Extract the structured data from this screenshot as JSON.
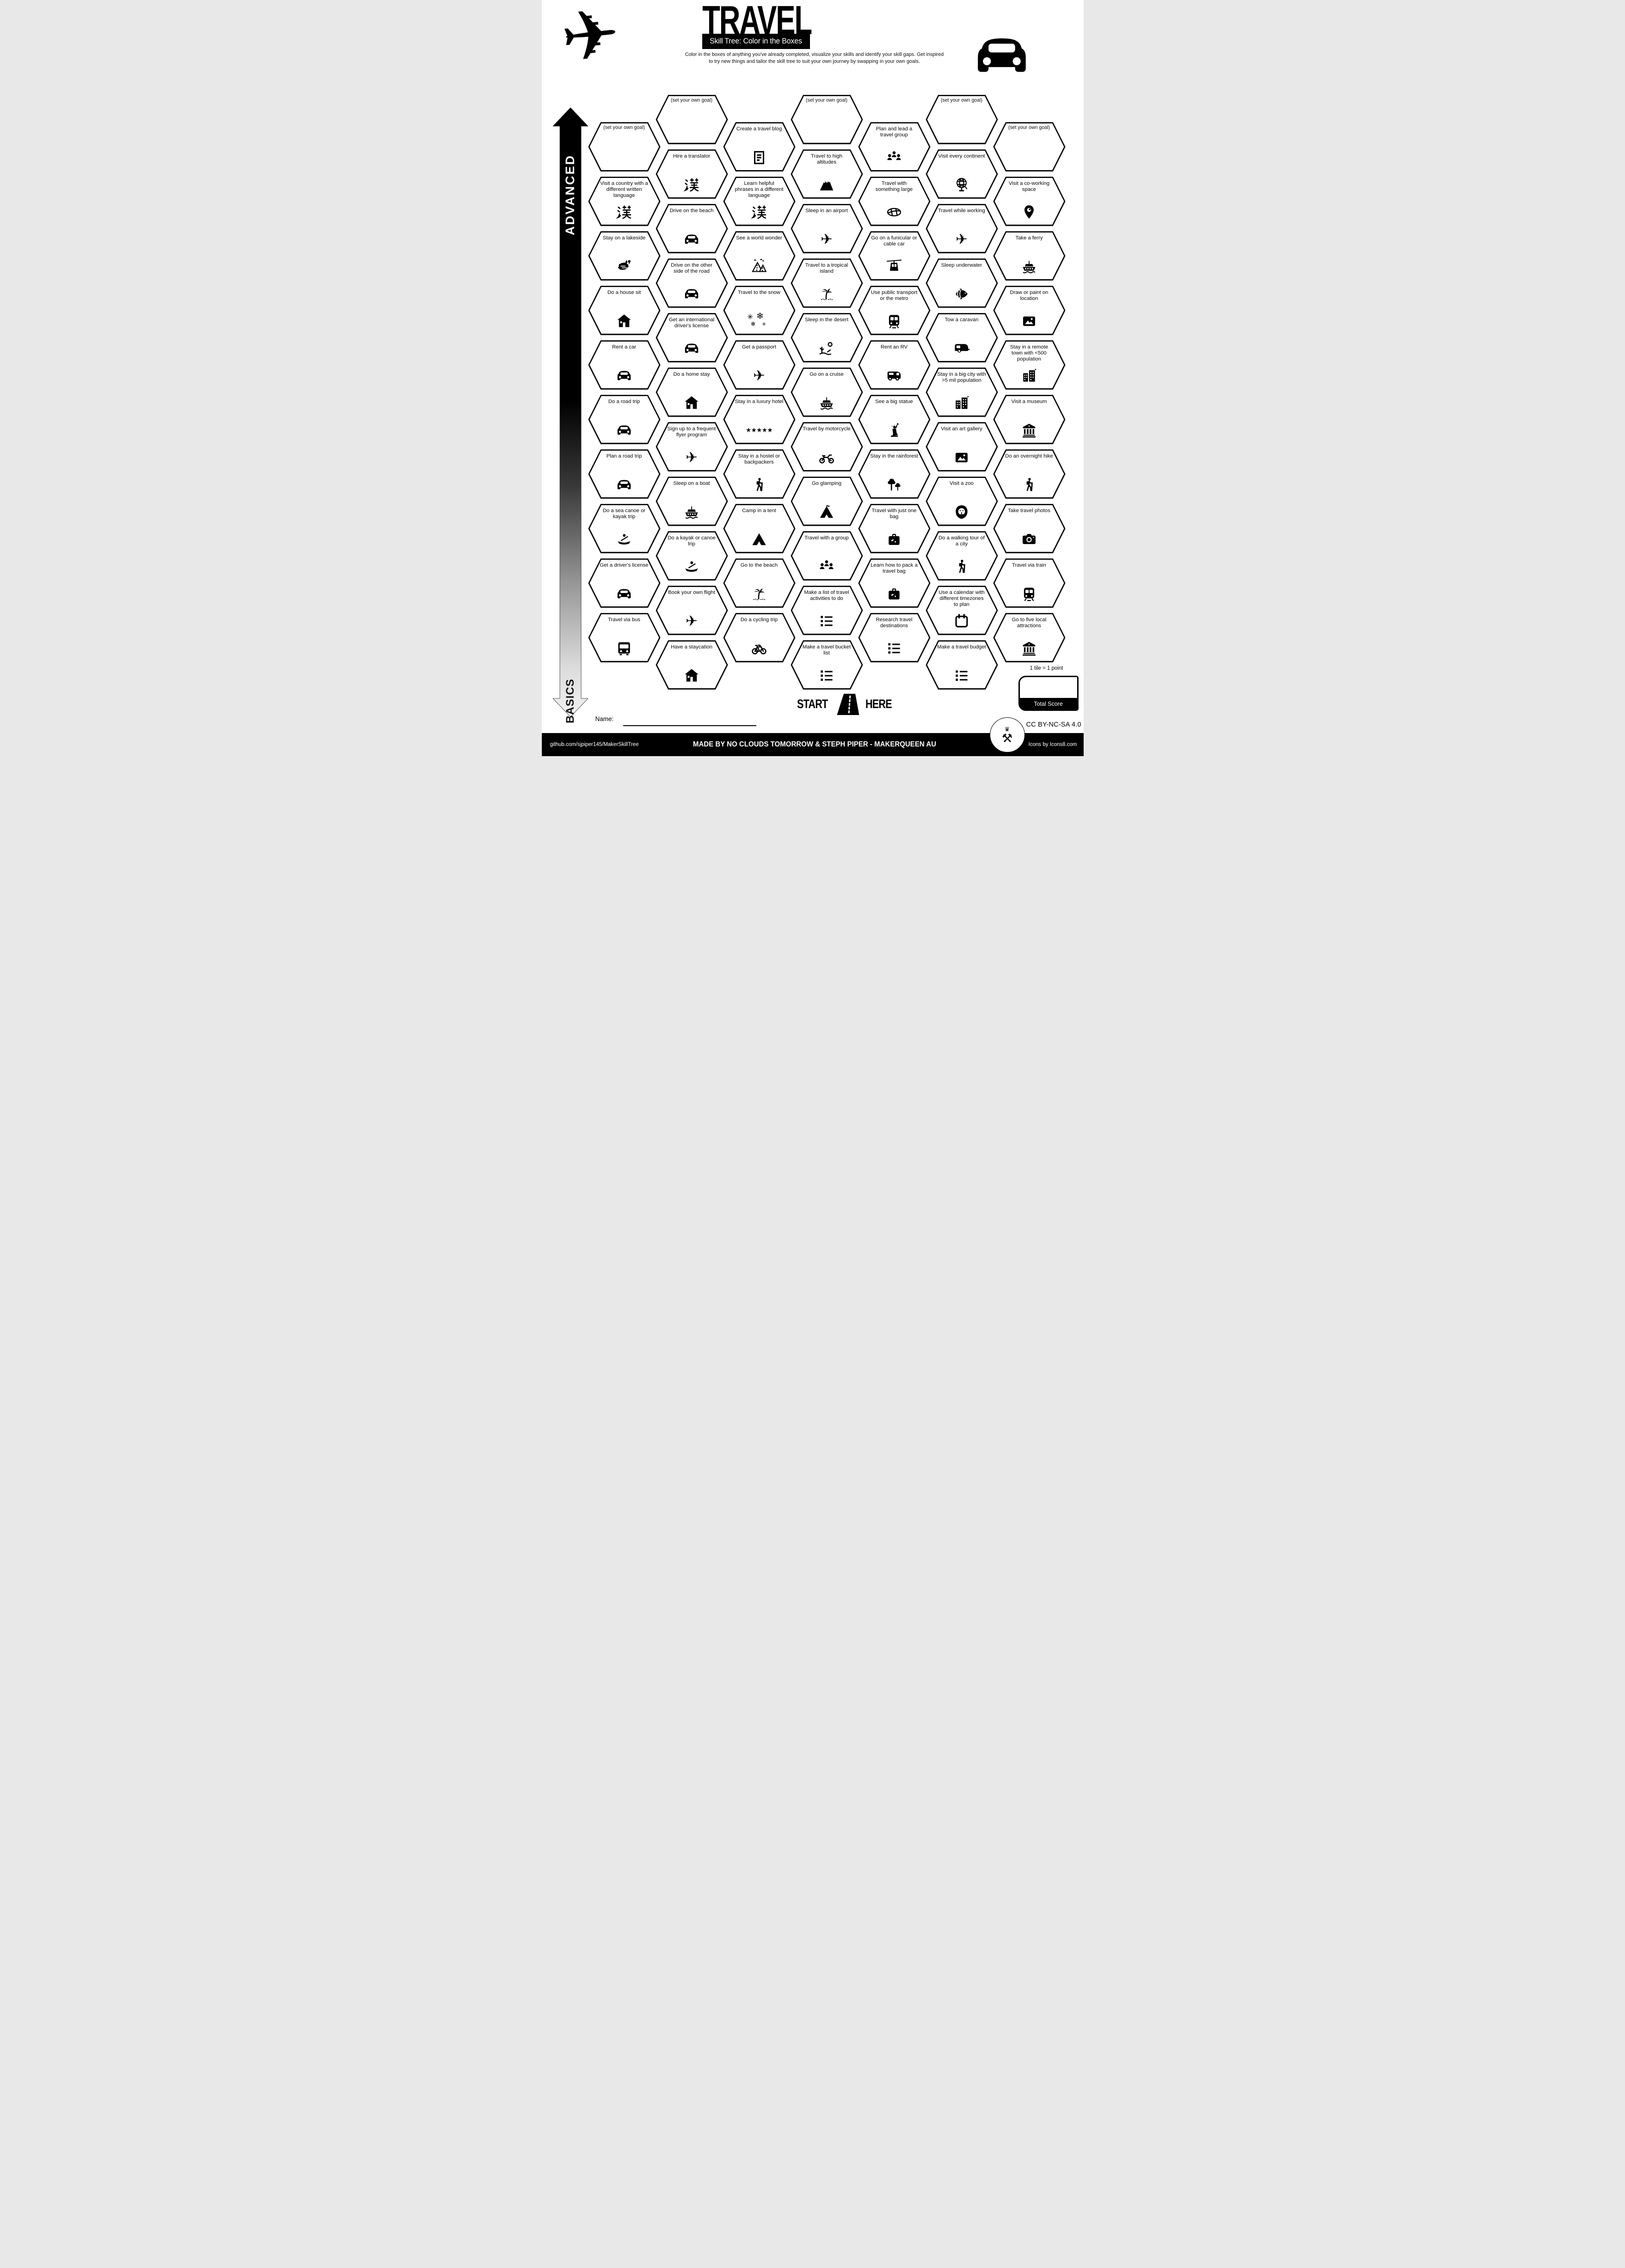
{
  "header": {
    "title": "TRAVEL",
    "subtitle": "Skill Tree: Color in the Boxes",
    "description_line1": "Color in the boxes of anything you've already completed, visualize your skills and identify your skill gaps.  Get inspired",
    "description_line2": "to try new things and tailor the skill tree to suit your own journey by swapping in your own goals.",
    "left_icon": "plane",
    "right_icon": "car"
  },
  "axis": {
    "top": "ADVANCED",
    "bottom": "BASICS"
  },
  "grid": {
    "columns": [
      {
        "tiles": [
          {
            "label": "(set your own goal)",
            "icon": null
          },
          {
            "label": "Visit a country with a different written language",
            "icon": "kanji"
          },
          {
            "label": "Stay on a lakeside",
            "icon": "lake"
          },
          {
            "label": "Do a house sit",
            "icon": "house"
          },
          {
            "label": "Rent a car",
            "icon": "car"
          },
          {
            "label": "Do a road trip",
            "icon": "car"
          },
          {
            "label": "Plan a road trip",
            "icon": "car"
          },
          {
            "label": "Do a sea canoe or kayak trip",
            "icon": "canoe"
          },
          {
            "label": "Get a driver's license",
            "icon": "car"
          },
          {
            "label": "Travel via bus",
            "icon": "bus"
          }
        ]
      },
      {
        "tiles": [
          {
            "label": "(set your own goal)",
            "icon": null
          },
          {
            "label": "Hire a translator",
            "icon": "kanji"
          },
          {
            "label": "Drive on the beach",
            "icon": "car"
          },
          {
            "label": "Drive on the other side of the road",
            "icon": "car"
          },
          {
            "label": "Get an international driver's license",
            "icon": "car"
          },
          {
            "label": "Do a home stay",
            "icon": "house"
          },
          {
            "label": "Sign up to a frequent flyer program",
            "icon": "plane"
          },
          {
            "label": "Sleep on a boat",
            "icon": "ship"
          },
          {
            "label": "Do a kayak or canoe trip",
            "icon": "canoe"
          },
          {
            "label": "Book your own flight",
            "icon": "plane"
          },
          {
            "label": "Have a staycation",
            "icon": "house"
          }
        ]
      },
      {
        "tiles": [
          {
            "label": "Create a travel blog",
            "icon": "doc"
          },
          {
            "label": "Learn helpful phrases in a different language",
            "icon": "kanji"
          },
          {
            "label": "See a world wonder",
            "icon": "pyramids"
          },
          {
            "label": "Travel to the snow",
            "icon": "snow"
          },
          {
            "label": "Get a passport",
            "icon": "plane"
          },
          {
            "label": "Stay in a luxury hotel",
            "icon": "stars"
          },
          {
            "label": "Stay in a hostel or backpackers",
            "icon": "hiker"
          },
          {
            "label": "Camp in a tent",
            "icon": "tent"
          },
          {
            "label": "Go to the beach",
            "icon": "palm"
          },
          {
            "label": "Do a cycling trip",
            "icon": "bike"
          }
        ]
      },
      {
        "tiles": [
          {
            "label": "(set your own goal)",
            "icon": null
          },
          {
            "label": "Travel to high altitudes",
            "icon": "mountain"
          },
          {
            "label": "Sleep in an airport",
            "icon": "plane"
          },
          {
            "label": "Travel to a tropical island",
            "icon": "palm"
          },
          {
            "label": "Sleep in the desert",
            "icon": "desert"
          },
          {
            "label": "Go on a cruise",
            "icon": "ship"
          },
          {
            "label": "Travel by motorcycle",
            "icon": "motorcycle"
          },
          {
            "label": "Go glamping",
            "icon": "glamp"
          },
          {
            "label": "Travel with a group",
            "icon": "people"
          },
          {
            "label": "Make a list of travel activities to do",
            "icon": "checklist"
          },
          {
            "label": "Make a travel bucket list",
            "icon": "checklist"
          }
        ]
      },
      {
        "tiles": [
          {
            "label": "Plan and lead a travel group",
            "icon": "people"
          },
          {
            "label": "Travel with something large",
            "icon": "surfboard"
          },
          {
            "label": "Go on a funicular or cable car",
            "icon": "cablecar"
          },
          {
            "label": "Use public transport or the metro",
            "icon": "train"
          },
          {
            "label": "Rent an RV",
            "icon": "rv"
          },
          {
            "label": "See a big statue",
            "icon": "statue"
          },
          {
            "label": "Stay in the rainforest",
            "icon": "rainforest"
          },
          {
            "label": "Travel with just one bag",
            "icon": "suitcase"
          },
          {
            "label": "Learn how to pack a travel bag",
            "icon": "suitcase"
          },
          {
            "label": "Research travel destinations",
            "icon": "checklist"
          }
        ]
      },
      {
        "tiles": [
          {
            "label": "(set your own goal)",
            "icon": null
          },
          {
            "label": "Visit every continent",
            "icon": "globe"
          },
          {
            "label": "Travel while working",
            "icon": "plane"
          },
          {
            "label": "Sleep underwater",
            "icon": "fish"
          },
          {
            "label": "Tow a caravan",
            "icon": "caravan"
          },
          {
            "label": "Stay in a big city with >5 mil population",
            "icon": "buildings"
          },
          {
            "label": "Visit an art gallery",
            "icon": "image"
          },
          {
            "label": "Visit a zoo",
            "icon": "lion"
          },
          {
            "label": "Do a walking tour of a city",
            "icon": "hiker"
          },
          {
            "label": "Use a calendar with different timezones to plan",
            "icon": "calendar"
          },
          {
            "label": "Make a travel budget",
            "icon": "checklist"
          }
        ]
      },
      {
        "tiles": [
          {
            "label": "(set your own goal)",
            "icon": null
          },
          {
            "label": "Visit a co-working space",
            "icon": "pin"
          },
          {
            "label": "Take a ferry",
            "icon": "ship"
          },
          {
            "label": "Draw or paint on location",
            "icon": "image"
          },
          {
            "label": "Stay in a remote town with <500 population",
            "icon": "buildings"
          },
          {
            "label": "Visit a museum",
            "icon": "museum"
          },
          {
            "label": "Do an overnight hike",
            "icon": "hiker"
          },
          {
            "label": "Take travel photos",
            "icon": "camera"
          },
          {
            "label": "Travel via train",
            "icon": "train"
          },
          {
            "label": "Go to five local attractions",
            "icon": "museum"
          }
        ]
      }
    ]
  },
  "start": {
    "left": "START",
    "right": "HERE"
  },
  "name_field": {
    "label": "Name:",
    "value": ""
  },
  "score": {
    "note": "1 tile = 1 point",
    "label": "Total Score",
    "value": ""
  },
  "license": {
    "text": "CC BY-NC-SA 4.0"
  },
  "footer": {
    "left": "github.com/sjpiper145/MakerSkillTree",
    "center": "MADE BY NO CLOUDS TOMORROW & STEPH PIPER  -  MAKERQUEEN AU",
    "right": "Icons by Icons8.com"
  },
  "colors": {
    "ink": "#000000",
    "paper": "#ffffff"
  }
}
